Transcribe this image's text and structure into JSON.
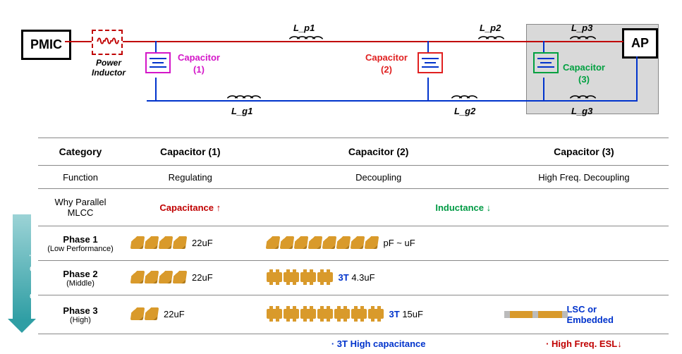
{
  "circuit": {
    "pmic_label": "PMIC",
    "ap_label": "AP",
    "power_inductor_label": "Power\nInductor",
    "inductors_top": [
      "L_p1",
      "L_p2",
      "L_p3"
    ],
    "inductors_bot": [
      "L_g1",
      "L_g2",
      "L_g3"
    ],
    "cap1": {
      "label": "Capacitor\n(1)",
      "color": "#d416c8"
    },
    "cap2": {
      "label": "Capacitor\n(2)",
      "color": "#e02020"
    },
    "cap3": {
      "label": "Capacitor\n(3)",
      "color": "#00a040"
    },
    "wire_top_color": "#c00000",
    "wire_bot_color": "#0033cc"
  },
  "table": {
    "headers": [
      "Category",
      "Capacitor (1)",
      "Capacitor (2)",
      "Capacitor (3)"
    ],
    "function_row": {
      "label": "Function",
      "c1": "Regulating",
      "c2": "Decoupling",
      "c3": "High Freq. Decoupling"
    },
    "why_row": {
      "label": "Why Parallel MLCC",
      "c1": "Capacitance ↑",
      "c23": "Inductance ↓"
    },
    "arrow_label": "Space Saving",
    "phases": [
      {
        "name": "Phase 1",
        "sub": "(Low Performance)",
        "c1_n": 4,
        "c1_txt": "22uF",
        "c2_n": 8,
        "c2_type": "std",
        "c2_txt": "pF ~ uF",
        "c3": ""
      },
      {
        "name": "Phase 2",
        "sub": "(Middle)",
        "c1_n": 4,
        "c1_txt": "22uF",
        "c2_n": 4,
        "c2_type": "3t",
        "c2_pre": "3T",
        "c2_txt": "4.3uF",
        "c3": ""
      },
      {
        "name": "Phase 3",
        "sub": "(High)",
        "c1_n": 2,
        "c1_txt": "22uF",
        "c2_n": 7,
        "c2_type": "3t",
        "c2_pre": "3T",
        "c2_txt": "15uF",
        "c3_lsc": 2,
        "c3_txt": "LSC or\nEmbedded"
      }
    ],
    "footnote_c2": "· 3T High capacitance",
    "footnote_c3": "· High Freq. ESL↓"
  },
  "colors": {
    "red": "#c00000",
    "green": "#009a44",
    "blue": "#0033cc",
    "chip": "#d99a2b",
    "arrow_top": "#9cd3d6",
    "arrow_bot": "#2f9ea4"
  }
}
